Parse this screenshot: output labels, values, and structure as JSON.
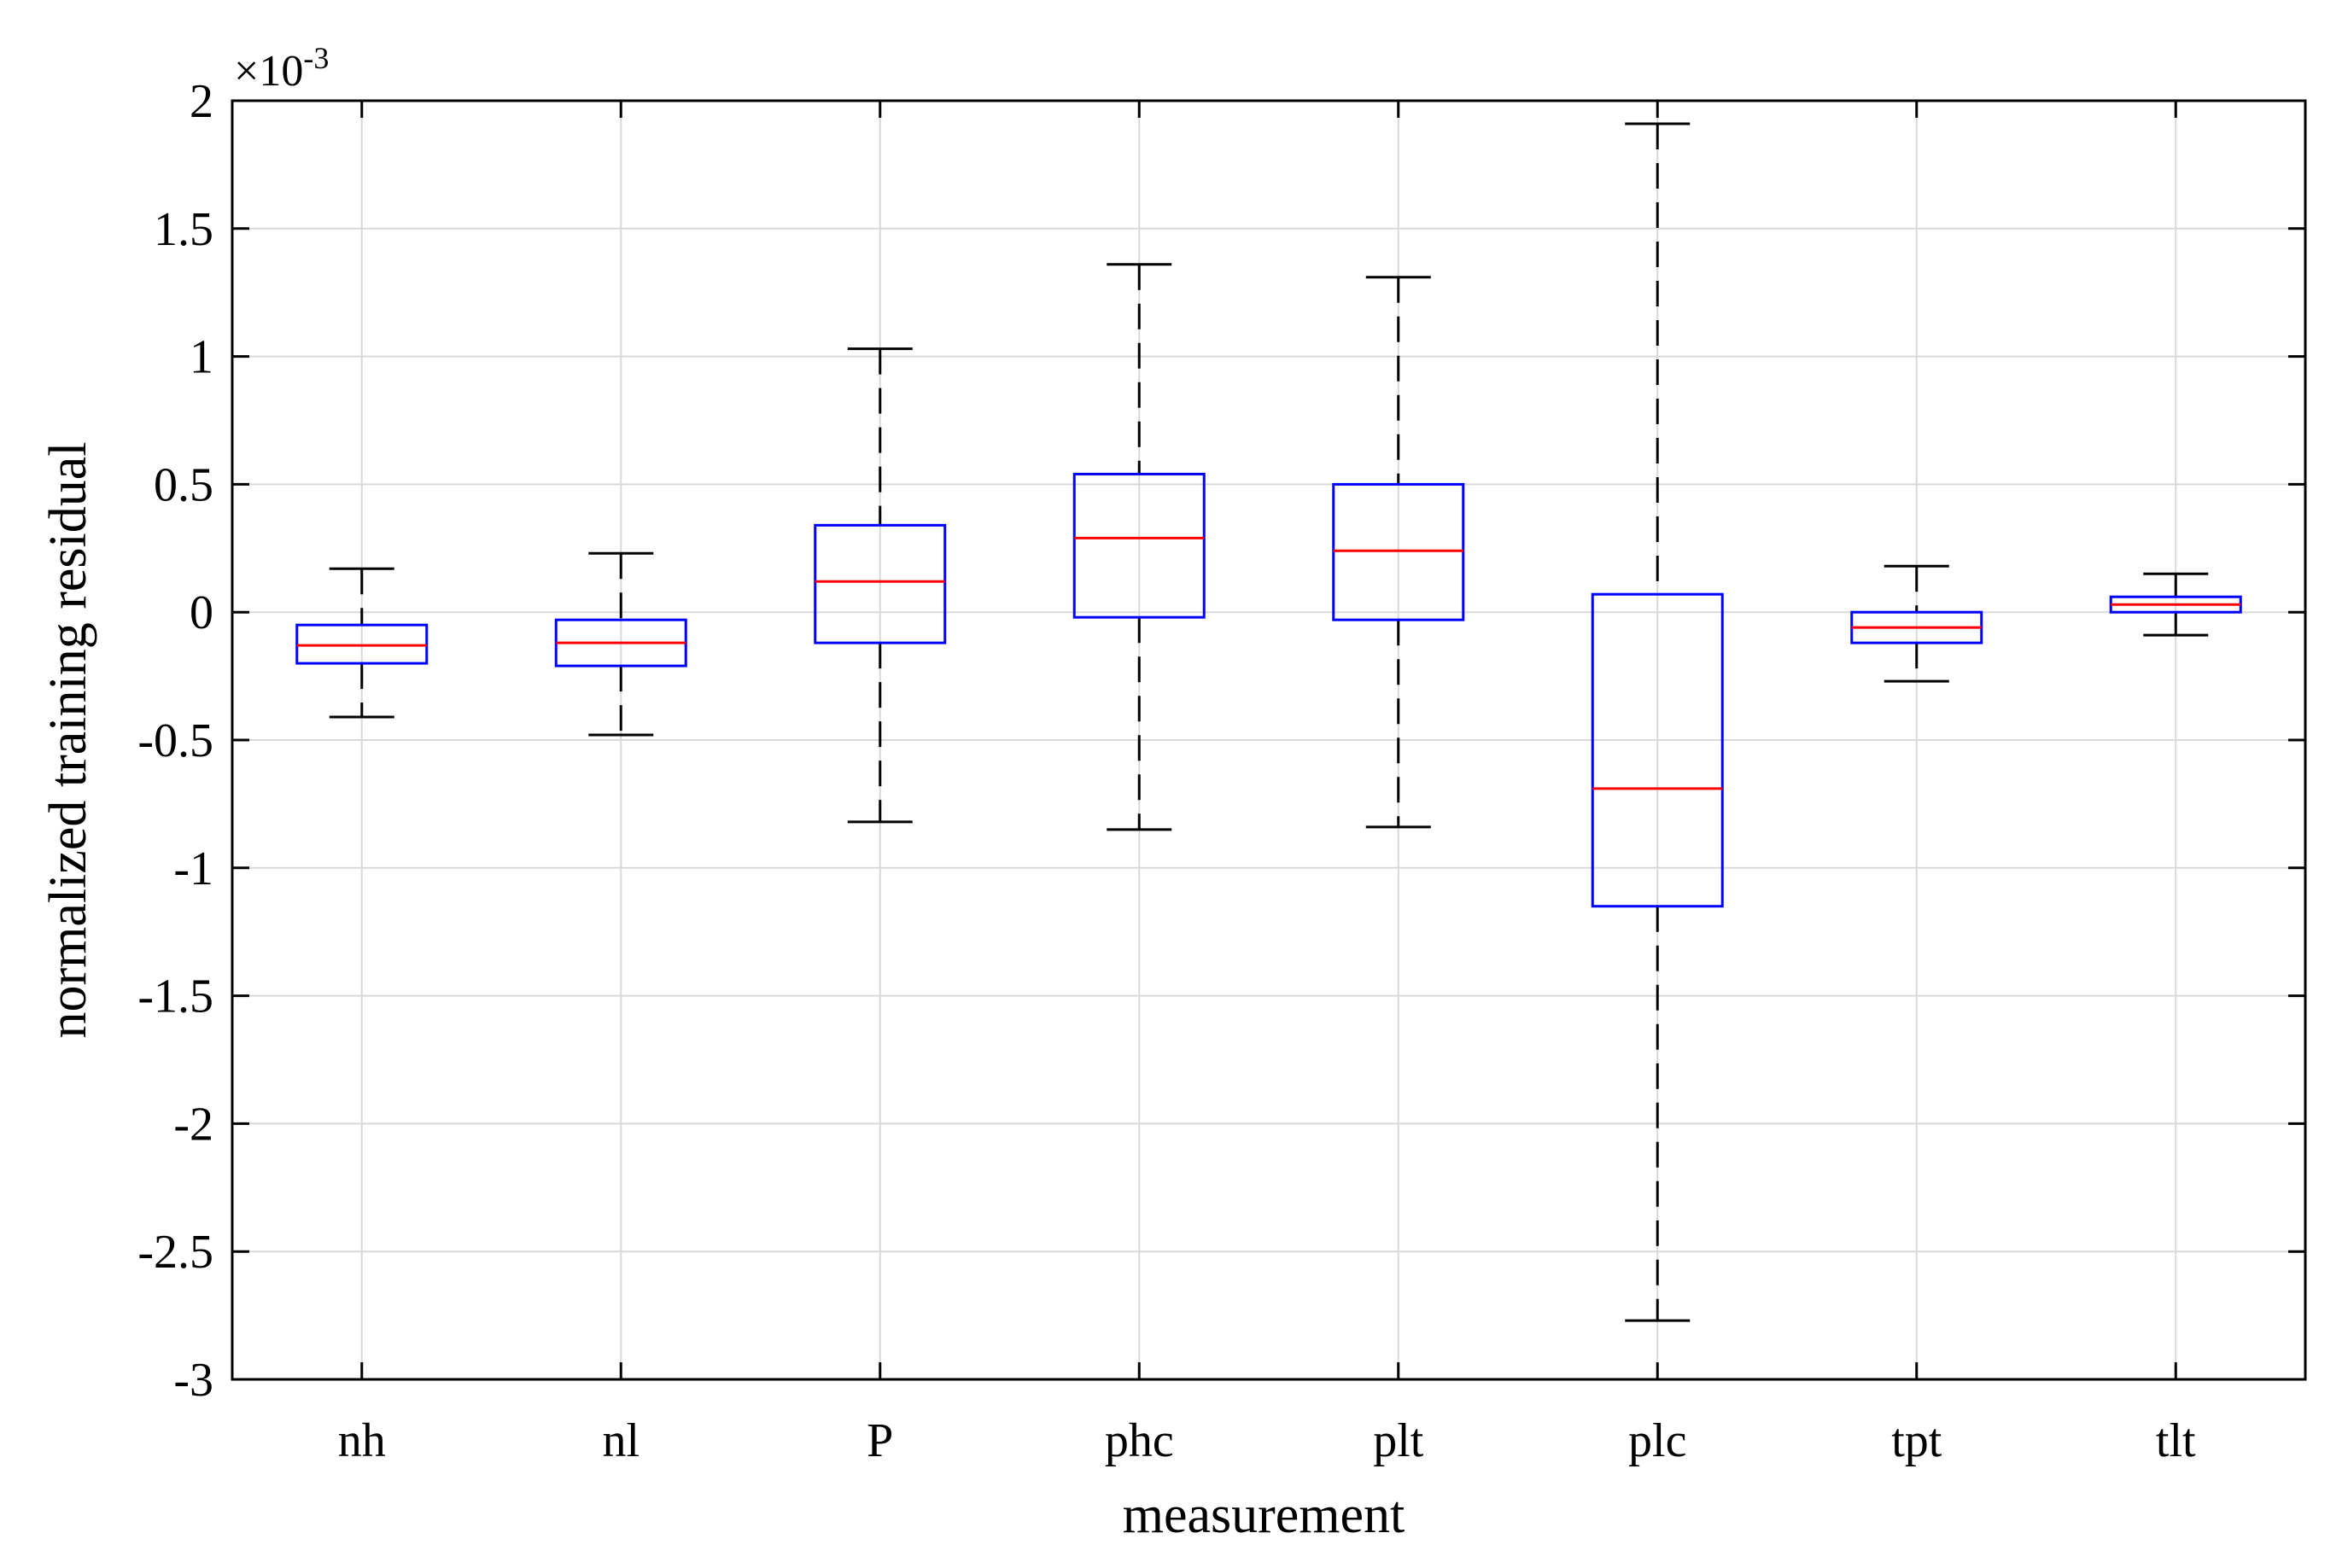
{
  "chart_data": {
    "type": "boxplot",
    "title": "",
    "xlabel": "measurement",
    "ylabel": "normalized training residual",
    "y_scale_label": {
      "prefix": "×10",
      "exponent": "-3"
    },
    "ylim": [
      -3,
      2
    ],
    "yticks": [
      2,
      1.5,
      1,
      0.5,
      0,
      -0.5,
      -1,
      -1.5,
      -2,
      -2.5,
      -3
    ],
    "ytick_labels": [
      "2",
      "1.5",
      "1",
      "0.5",
      "0",
      "-0.5",
      "-1",
      "-1.5",
      "-2",
      "-2.5",
      "-3"
    ],
    "grid": true,
    "categories": [
      "nh",
      "nl",
      "P",
      "phc",
      "plt",
      "plc",
      "tpt",
      "tlt"
    ],
    "boxes": [
      {
        "name": "nh",
        "whisker_low": -0.41,
        "q1": -0.2,
        "median": -0.13,
        "q3": -0.05,
        "whisker_high": 0.17
      },
      {
        "name": "nl",
        "whisker_low": -0.48,
        "q1": -0.21,
        "median": -0.12,
        "q3": -0.03,
        "whisker_high": 0.23
      },
      {
        "name": "P",
        "whisker_low": -0.82,
        "q1": -0.12,
        "median": 0.12,
        "q3": 0.34,
        "whisker_high": 1.03
      },
      {
        "name": "phc",
        "whisker_low": -0.85,
        "q1": -0.02,
        "median": 0.29,
        "q3": 0.54,
        "whisker_high": 1.36
      },
      {
        "name": "plt",
        "whisker_low": -0.84,
        "q1": -0.03,
        "median": 0.24,
        "q3": 0.5,
        "whisker_high": 1.31
      },
      {
        "name": "plc",
        "whisker_low": -2.77,
        "q1": -1.15,
        "median": -0.69,
        "q3": 0.07,
        "whisker_high": 1.91
      },
      {
        "name": "tpt",
        "whisker_low": -0.27,
        "q1": -0.12,
        "median": -0.06,
        "q3": 0.0,
        "whisker_high": 0.18
      },
      {
        "name": "tlt",
        "whisker_low": -0.09,
        "q1": 0.0,
        "median": 0.03,
        "q3": 0.06,
        "whisker_high": 0.15
      }
    ],
    "colors": {
      "box": "#0000ff",
      "median": "#ff0000",
      "whisker": "#000000",
      "grid": "#d9d9d9",
      "axes": "#000000"
    }
  }
}
